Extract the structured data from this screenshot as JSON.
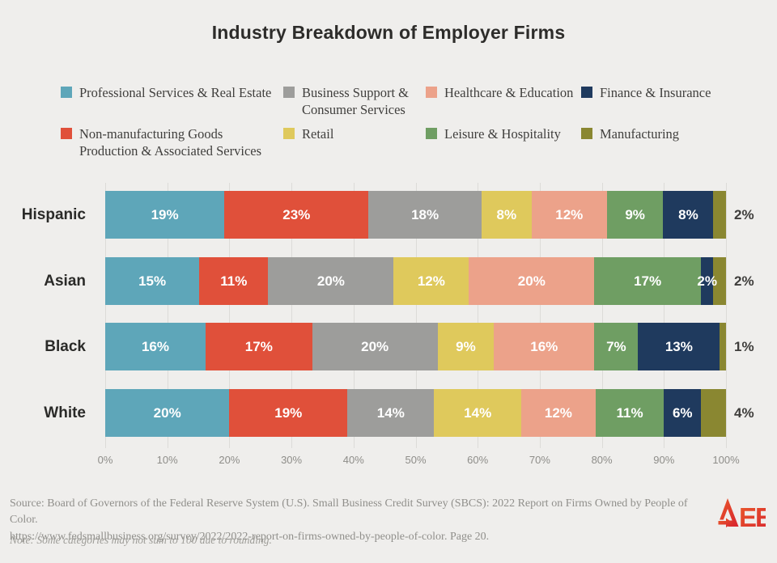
{
  "title": "Industry Breakdown of Employer Firms",
  "legend": {
    "items": [
      {
        "label": "Professional Services & Real Estate",
        "color": "#5EA6B9"
      },
      {
        "label": "Business Support & Consumer Services",
        "color": "#9D9D9B"
      },
      {
        "label": "Healthcare & Education",
        "color": "#ECA28A"
      },
      {
        "label": "Finance & Insurance",
        "color": "#1F3A5E"
      },
      {
        "label": "Non-manufacturing Goods Production & Associated Services",
        "color": "#E0503A"
      },
      {
        "label": "Retail",
        "color": "#DFC95C"
      },
      {
        "label": "Leisure & Hospitality",
        "color": "#6F9E63"
      },
      {
        "label": "Manufacturing",
        "color": "#8A8731"
      }
    ]
  },
  "chart_data": {
    "type": "bar",
    "variant": "horizontal-stacked",
    "title": "Industry Breakdown of Employer Firms",
    "categories": [
      "Hispanic",
      "Asian",
      "Black",
      "White"
    ],
    "series": [
      {
        "name": "Professional Services & Real Estate",
        "color": "#5EA6B9",
        "values": [
          19,
          15,
          16,
          20
        ]
      },
      {
        "name": "Non-manufacturing Goods Production & Associated Services",
        "color": "#E0503A",
        "values": [
          23,
          11,
          17,
          19
        ]
      },
      {
        "name": "Business Support & Consumer Services",
        "color": "#9D9D9B",
        "values": [
          18,
          20,
          20,
          14
        ]
      },
      {
        "name": "Retail",
        "color": "#DFC95C",
        "values": [
          8,
          12,
          9,
          14
        ]
      },
      {
        "name": "Healthcare & Education",
        "color": "#ECA28A",
        "values": [
          12,
          20,
          16,
          12
        ]
      },
      {
        "name": "Leisure & Hospitality",
        "color": "#6F9E63",
        "values": [
          9,
          17,
          7,
          11
        ]
      },
      {
        "name": "Finance & Insurance",
        "color": "#1F3A5E",
        "values": [
          8,
          2,
          13,
          6
        ]
      },
      {
        "name": "Manufacturing",
        "color": "#8A8731",
        "values": [
          2,
          2,
          1,
          4
        ]
      }
    ],
    "value_suffix": "%",
    "x_ticks": [
      "0%",
      "10%",
      "20%",
      "30%",
      "40%",
      "50%",
      "60%",
      "70%",
      "80%",
      "90%",
      "100%"
    ],
    "xlim": [
      0,
      100
    ],
    "grid": true,
    "legend_position": "top",
    "last_series_label_outside": true
  },
  "source": {
    "line1": "Source: Board of Governors of the Federal Reserve System (U.S). Small Business Credit Survey (SBCS): 2022 Report on Firms Owned by People of Color.",
    "line2": "https://www.fedsmallbusiness.org/survey/2022/2022-report-on-firms-owned-by-people-of-color. Page 20."
  },
  "note": "Note: Some categories may not sum to 100 due to rounding.",
  "logo": {
    "ee": "EE",
    "alt": "AEE"
  },
  "colors": {
    "background": "#EFEEEC",
    "gridline": "#DCDBD8",
    "title_text": "#2D2C2A",
    "category_text": "#2A2A28",
    "axis_text": "#8E8D89",
    "source_text": "#908F8B",
    "logo_gradient_start": "#EA5B2B",
    "logo_gradient_end": "#D7232E"
  }
}
